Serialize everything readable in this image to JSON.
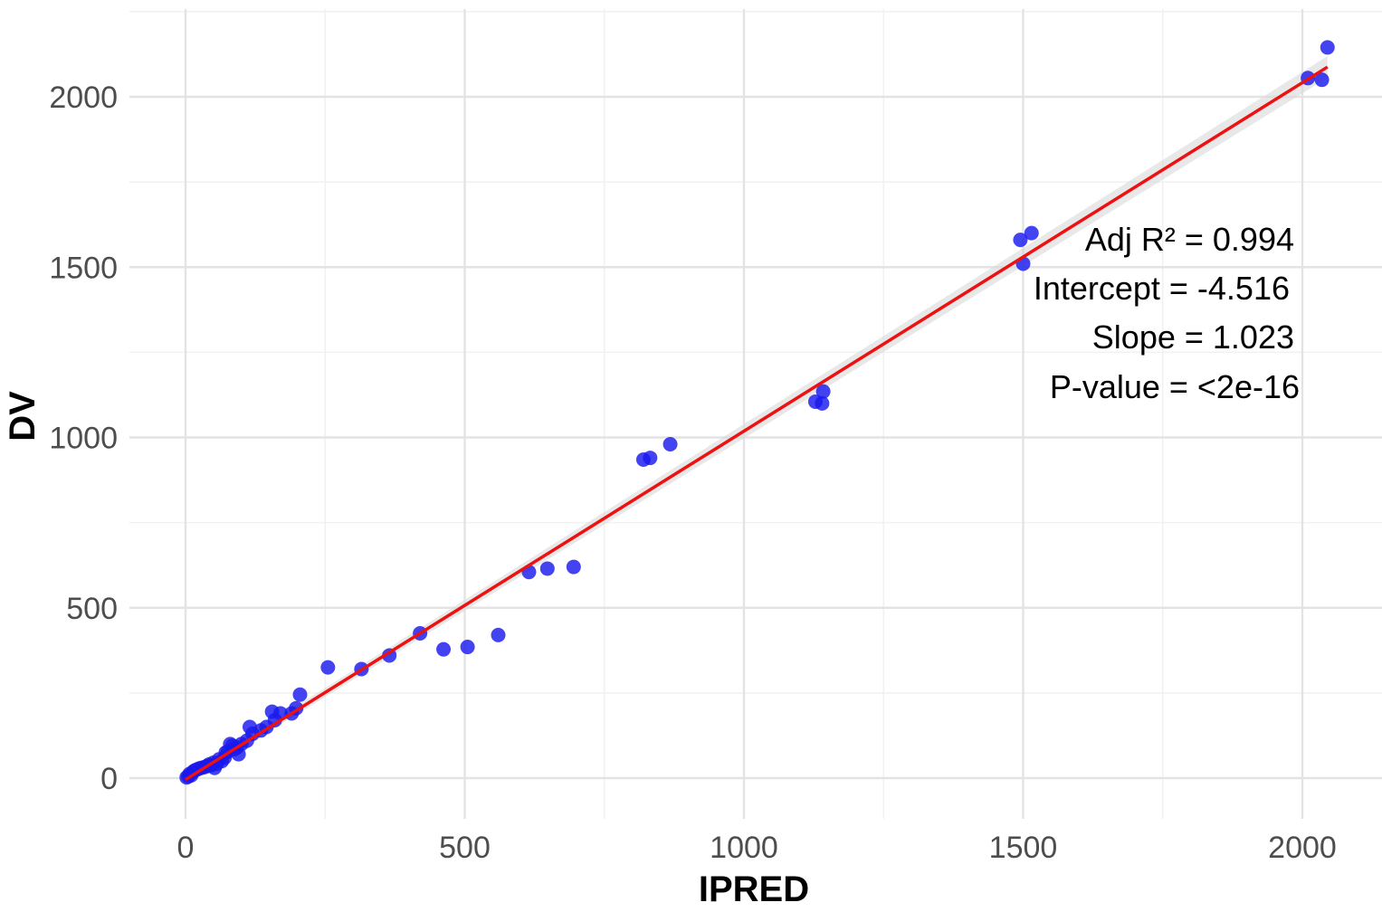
{
  "chart_data": {
    "type": "scatter",
    "title": "",
    "xlabel": "IPRED",
    "ylabel": "DV",
    "xlim": [
      -100,
      2130
    ],
    "ylim": [
      -110,
      2260
    ],
    "x_ticks": [
      0,
      500,
      1000,
      1500,
      2000
    ],
    "y_ticks": [
      0,
      500,
      1000,
      1500,
      2000
    ],
    "grid": true,
    "legend": "none",
    "series": [
      {
        "name": "observations",
        "color": "#1a1aee",
        "points": [
          [
            2,
            2
          ],
          [
            5,
            5
          ],
          [
            7,
            12
          ],
          [
            10,
            8
          ],
          [
            13,
            18
          ],
          [
            16,
            22
          ],
          [
            20,
            25
          ],
          [
            24,
            28
          ],
          [
            28,
            30
          ],
          [
            33,
            32
          ],
          [
            38,
            35
          ],
          [
            42,
            40
          ],
          [
            46,
            38
          ],
          [
            50,
            45
          ],
          [
            52,
            30
          ],
          [
            56,
            42
          ],
          [
            60,
            55
          ],
          [
            65,
            50
          ],
          [
            70,
            60
          ],
          [
            72,
            75
          ],
          [
            76,
            78
          ],
          [
            80,
            100
          ],
          [
            84,
            95
          ],
          [
            88,
            85
          ],
          [
            92,
            90
          ],
          [
            95,
            70
          ],
          [
            100,
            100
          ],
          [
            110,
            110
          ],
          [
            115,
            150
          ],
          [
            120,
            130
          ],
          [
            135,
            140
          ],
          [
            145,
            150
          ],
          [
            155,
            195
          ],
          [
            160,
            170
          ],
          [
            170,
            190
          ],
          [
            190,
            190
          ],
          [
            198,
            205
          ],
          [
            205,
            245
          ],
          [
            255,
            325
          ],
          [
            315,
            320
          ],
          [
            365,
            360
          ],
          [
            420,
            425
          ],
          [
            462,
            378
          ],
          [
            505,
            385
          ],
          [
            560,
            420
          ],
          [
            615,
            605
          ],
          [
            648,
            615
          ],
          [
            695,
            620
          ],
          [
            820,
            935
          ],
          [
            832,
            940
          ],
          [
            868,
            980
          ],
          [
            1128,
            1105
          ],
          [
            1140,
            1100
          ],
          [
            1142,
            1135
          ],
          [
            1495,
            1580
          ],
          [
            1500,
            1510
          ],
          [
            1515,
            1600
          ],
          [
            2010,
            2055
          ],
          [
            2035,
            2050
          ],
          [
            2045,
            2145
          ]
        ]
      }
    ],
    "fit": {
      "method": "lm",
      "color": "#ee1111",
      "ci_color": "#d9d9d9",
      "intercept": -4.516,
      "slope": 1.023,
      "x_range": [
        0,
        2045
      ]
    },
    "annotations": {
      "adj_r2": "Adj R² = 0.994",
      "intercept": "Intercept = -4.516",
      "slope": "Slope = 1.023",
      "p_value": "P-value = <2e-16"
    }
  }
}
